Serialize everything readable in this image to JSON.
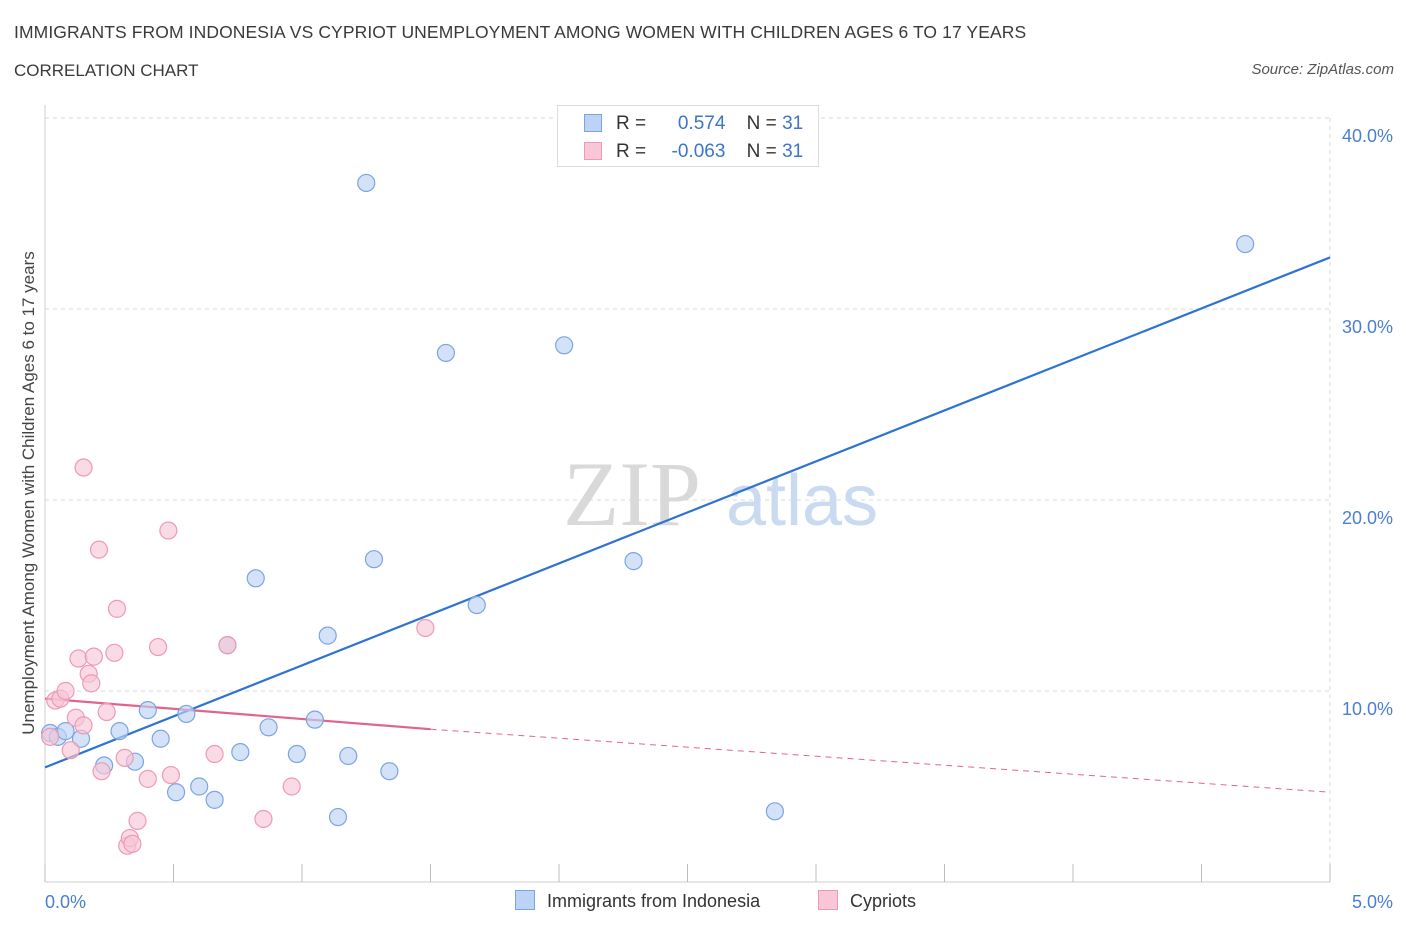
{
  "header": {
    "title": "IMMIGRANTS FROM INDONESIA VS CYPRIOT UNEMPLOYMENT AMONG WOMEN WITH CHILDREN AGES 6 TO 17 YEARS",
    "subtitle": "CORRELATION CHART",
    "source": "Source: ZipAtlas.com"
  },
  "watermark": {
    "zip": "ZIP",
    "atlas": "atlas"
  },
  "stats_legend": [
    {
      "r_label": "R =",
      "r_value": "0.574",
      "n_label": "N =",
      "n_value": "31"
    },
    {
      "r_label": "R =",
      "r_value": "-0.063",
      "n_label": "N =",
      "n_value": "31"
    }
  ],
  "colors": {
    "blue_fill": "#bdd3f5",
    "blue_stroke": "#7aa5e3",
    "blue_line": "#2e72d2",
    "pink_fill": "#f8c6d6",
    "pink_stroke": "#ee9ab5",
    "pink_line": "#e0658e",
    "grid": "#d9d9d9",
    "tick_text": "#4a7fd0"
  },
  "chart_data": {
    "type": "scatter",
    "ylabel": "Unemployment Among Women with Children Ages 6 to 17 years",
    "xlim": [
      0,
      5
    ],
    "ylim": [
      0,
      40
    ],
    "x_tick_labels": [
      "0.0%",
      "5.0%"
    ],
    "y_ticks": [
      10,
      20,
      30,
      40
    ],
    "y_tick_labels": [
      "10.0%",
      "20.0%",
      "30.0%",
      "40.0%"
    ],
    "grid": true,
    "legend_position": "top-center",
    "series": [
      {
        "name": "Immigrants from Indonesia",
        "color": "blue",
        "points": [
          [
            0.02,
            7.8
          ],
          [
            0.05,
            7.6
          ],
          [
            0.08,
            7.9
          ],
          [
            0.14,
            7.5
          ],
          [
            0.23,
            6.1
          ],
          [
            0.29,
            7.9
          ],
          [
            0.35,
            6.3
          ],
          [
            0.4,
            9.0
          ],
          [
            0.45,
            7.5
          ],
          [
            0.51,
            4.7
          ],
          [
            0.55,
            8.8
          ],
          [
            0.6,
            5.0
          ],
          [
            0.66,
            4.3
          ],
          [
            0.71,
            12.4
          ],
          [
            0.76,
            6.8
          ],
          [
            0.82,
            15.9
          ],
          [
            0.87,
            8.1
          ],
          [
            0.98,
            6.7
          ],
          [
            1.05,
            8.5
          ],
          [
            1.1,
            12.9
          ],
          [
            1.14,
            3.4
          ],
          [
            1.18,
            6.6
          ],
          [
            1.25,
            36.6
          ],
          [
            1.28,
            16.9
          ],
          [
            1.34,
            5.8
          ],
          [
            1.56,
            27.7
          ],
          [
            1.68,
            14.5
          ],
          [
            2.02,
            28.1
          ],
          [
            2.29,
            16.8
          ],
          [
            2.84,
            3.7
          ],
          [
            4.67,
            33.4
          ]
        ],
        "trend": {
          "x": [
            0.0,
            5.0
          ],
          "y": [
            6.0,
            32.7
          ],
          "style": "solid"
        }
      },
      {
        "name": "Cypriots",
        "color": "pink",
        "points": [
          [
            0.02,
            7.6
          ],
          [
            0.04,
            9.5
          ],
          [
            0.06,
            9.6
          ],
          [
            0.08,
            10.0
          ],
          [
            0.1,
            6.9
          ],
          [
            0.12,
            8.6
          ],
          [
            0.13,
            11.7
          ],
          [
            0.15,
            8.2
          ],
          [
            0.15,
            21.7
          ],
          [
            0.17,
            10.9
          ],
          [
            0.18,
            10.4
          ],
          [
            0.19,
            11.8
          ],
          [
            0.21,
            17.4
          ],
          [
            0.22,
            5.8
          ],
          [
            0.24,
            8.9
          ],
          [
            0.27,
            12.0
          ],
          [
            0.28,
            14.3
          ],
          [
            0.31,
            6.5
          ],
          [
            0.32,
            1.9
          ],
          [
            0.33,
            2.3
          ],
          [
            0.34,
            2.0
          ],
          [
            0.36,
            3.2
          ],
          [
            0.4,
            5.4
          ],
          [
            0.44,
            12.3
          ],
          [
            0.48,
            18.4
          ],
          [
            0.49,
            5.6
          ],
          [
            0.66,
            6.7
          ],
          [
            0.71,
            12.4
          ],
          [
            0.85,
            3.3
          ],
          [
            0.96,
            5.0
          ],
          [
            1.48,
            13.3
          ]
        ],
        "trend": {
          "x": [
            0.0,
            1.5,
            5.0
          ],
          "y": [
            9.6,
            8.0,
            4.7
          ],
          "style": "solid-then-dashed"
        }
      }
    ]
  }
}
